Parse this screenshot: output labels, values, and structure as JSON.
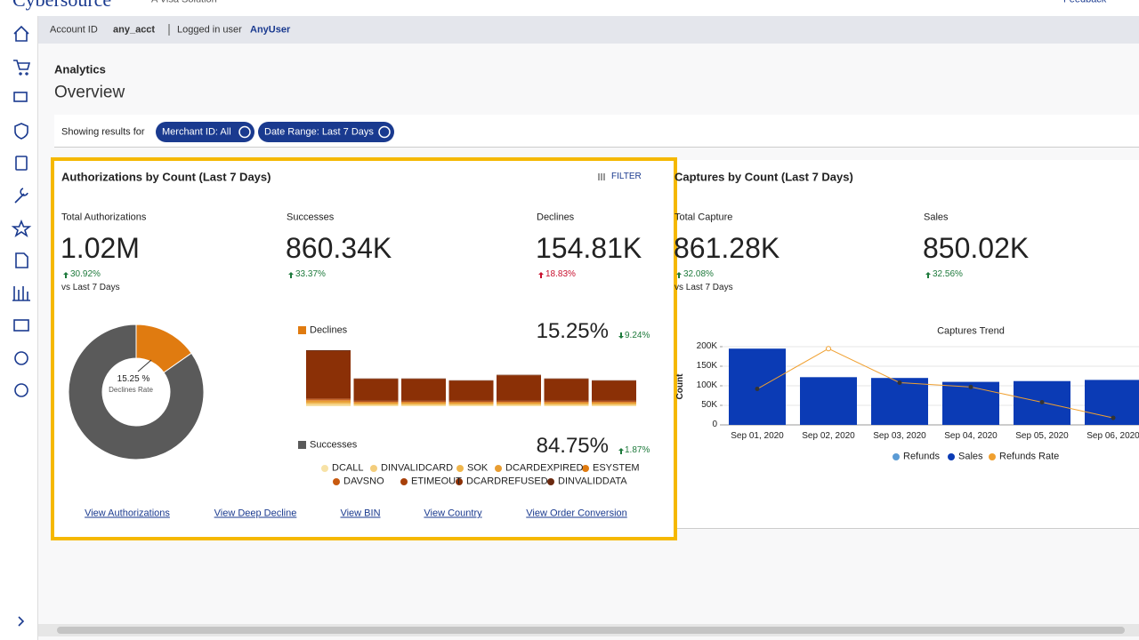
{
  "header": {
    "brand": "Cybersource",
    "tagline": "A Visa Solution",
    "feedback": "Feedback"
  },
  "account_bar": {
    "account_id_label": "Account ID",
    "account_id": "any_acct",
    "user_label": "Logged in user",
    "user": "AnyUser"
  },
  "page": {
    "section": "Analytics",
    "title": "Overview"
  },
  "filters": {
    "label": "Showing results for",
    "chips": [
      "Merchant ID: All",
      "Date Range: Last 7 Days"
    ]
  },
  "auth_card": {
    "title": "Authorizations by Count (Last 7 Days)",
    "filter": "FILTER",
    "metrics": [
      {
        "label": "Total Authorizations",
        "value": "1.02M",
        "change": "30.92%",
        "trend": "up",
        "color": "#1e7a3c",
        "note": "vs Last 7 Days"
      },
      {
        "label": "Successes",
        "value": "860.34K",
        "change": "33.37%",
        "trend": "up",
        "color": "#1e7a3c"
      },
      {
        "label": "Declines",
        "value": "154.81K",
        "change": "18.83%",
        "trend": "up",
        "color": "#c8102e"
      }
    ],
    "donut": {
      "values": [
        15.25,
        84.75
      ],
      "colors": [
        "#e07b10",
        "#5a5a5a"
      ],
      "center_label": "15.25 %",
      "caption": "Declines Rate"
    },
    "declines": {
      "label": "Declines",
      "color": "#e07b10",
      "rate": "15.25%",
      "change": "9.24%",
      "trend": "down",
      "change_color": "#1e7a3c"
    },
    "successes": {
      "label": "Successes",
      "color": "#5a5a5a",
      "rate": "84.75%",
      "change": "1.87%",
      "trend": "up",
      "change_color": "#1e7a3c"
    },
    "decline_bars": {
      "type": "bar",
      "stacked": true,
      "series": [
        {
          "name": "DCALL",
          "color": "#f7e2a6",
          "values": [
            1.5,
            1,
            1,
            1,
            1,
            1,
            1
          ]
        },
        {
          "name": "DINVALIDCARD",
          "color": "#f3cd7c",
          "values": [
            1.5,
            1,
            1,
            1,
            1,
            1,
            1
          ]
        },
        {
          "name": "SOK",
          "color": "#efb64c",
          "values": [
            1,
            0.5,
            0.5,
            0.5,
            0.5,
            0.5,
            0.5
          ]
        },
        {
          "name": "DCARDEXPIRED",
          "color": "#e89d32",
          "values": [
            2,
            1.5,
            1.5,
            1.5,
            1.5,
            1.5,
            1.5
          ]
        },
        {
          "name": "ESYSTEM",
          "color": "#e07b10",
          "values": [
            0.5,
            0.5,
            0.5,
            0.5,
            0.5,
            0.5,
            0.5
          ]
        },
        {
          "name": "DAVSNO",
          "color": "#c85a10",
          "values": [
            1,
            0.5,
            0.5,
            0.5,
            0.5,
            0.5,
            0.5
          ]
        },
        {
          "name": "ETIMEOUT",
          "color": "#a8400a",
          "values": [
            1,
            1,
            1,
            1,
            1,
            1,
            1
          ]
        },
        {
          "name": "DCARDREFUSED",
          "color": "#8b3006",
          "values": [
            52,
            24,
            24,
            22,
            28,
            24,
            22
          ]
        },
        {
          "name": "DINVALIDDATA",
          "color": "#6b2a10",
          "values": [
            1,
            0.5,
            0.5,
            0.5,
            0.5,
            0.5,
            0.5
          ]
        }
      ]
    },
    "links": [
      "View Authorizations",
      "View Deep Decline",
      "View BIN",
      "View Country",
      "View Order Conversion"
    ]
  },
  "capture_card": {
    "title": "Captures by Count (Last 7 Days)",
    "metrics": [
      {
        "label": "Total Capture",
        "value": "861.28K",
        "change": "32.08%",
        "trend": "up",
        "color": "#1e7a3c",
        "note": "vs Last 7 Days"
      },
      {
        "label": "Sales",
        "value": "850.02K",
        "change": "32.56%",
        "trend": "up",
        "color": "#1e7a3c"
      }
    ],
    "chart_data": {
      "type": "bar",
      "title": "Captures Trend",
      "y_label": "Count",
      "categories": [
        "Sep 01, 2020",
        "Sep 02, 2020",
        "Sep 03, 2020",
        "Sep 04, 2020",
        "Sep 05, 2020",
        "Sep 06, 2020"
      ],
      "series": [
        {
          "name": "Refunds",
          "color": "#5b9bd5",
          "values": [
            0,
            0,
            0,
            0,
            0,
            0
          ]
        },
        {
          "name": "Sales",
          "color": "#0b3bb5",
          "values": [
            195000,
            122000,
            120000,
            110000,
            112000,
            115000
          ]
        },
        {
          "name": "Refunds Rate",
          "type": "line",
          "color": "#f0a030",
          "values": [
            92000,
            195000,
            108000,
            97000,
            58000,
            18000
          ]
        }
      ],
      "ylim": [
        0,
        200000
      ],
      "yticks": [
        0,
        {
          "value": 50000,
          "label": "50K"
        },
        {
          "value": 100000,
          "label": "100K"
        },
        {
          "value": 150000,
          "label": "150K"
        },
        {
          "value": 200000,
          "label": "200K"
        }
      ],
      "grid": true
    }
  }
}
